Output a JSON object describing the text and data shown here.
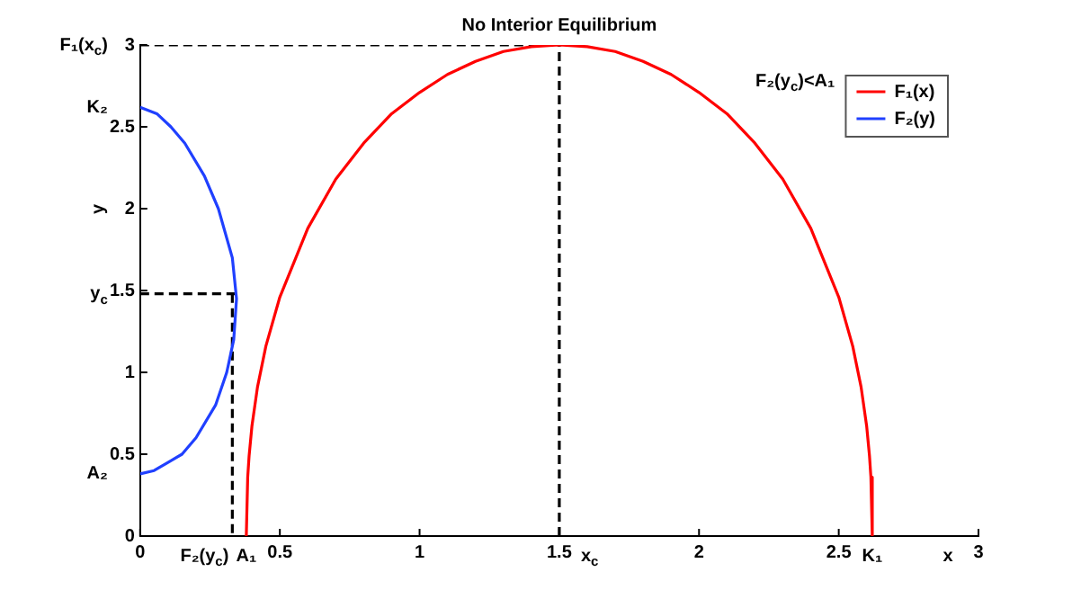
{
  "chart_data": {
    "type": "line",
    "title": "No Interior Equilibrium",
    "xlabel": "x",
    "ylabel": "y",
    "xlim": [
      0,
      3
    ],
    "ylim": [
      0,
      3
    ],
    "xticks": [
      0,
      0.5,
      1,
      1.5,
      2,
      2.5,
      3
    ],
    "yticks": [
      0,
      0.5,
      1,
      1.5,
      2,
      2.5,
      3
    ],
    "grid": false,
    "legend": "top right",
    "marker": "none",
    "line_style": "solid",
    "series": [
      {
        "name": "F₁(x)",
        "color": "#ff0000",
        "x": [
          0.38,
          0.385,
          0.39,
          0.4,
          0.42,
          0.45,
          0.5,
          0.6,
          0.7,
          0.8,
          0.9,
          1,
          1.1,
          1.2,
          1.3,
          1.4,
          1.5,
          1.6,
          1.7,
          1.8,
          1.9,
          2,
          2.1,
          2.2,
          2.3,
          2.4,
          2.5,
          2.55,
          2.58,
          2.6,
          2.61,
          2.615,
          2.62
        ],
        "values": [
          0,
          0.36,
          0.49,
          0.67,
          0.91,
          1.16,
          1.46,
          1.88,
          2.18,
          2.4,
          2.58,
          2.71,
          2.82,
          2.9,
          2.96,
          2.99,
          3,
          2.99,
          2.96,
          2.9,
          2.82,
          2.71,
          2.58,
          2.4,
          2.18,
          1.88,
          1.46,
          1.16,
          0.91,
          0.67,
          0.49,
          0.36,
          0
        ]
      },
      {
        "name": "F₂(y)",
        "color": "#2040ff",
        "x": [
          0,
          0.05,
          0.1,
          0.15,
          0.2,
          0.27,
          0.31,
          0.335,
          0.345,
          0.33,
          0.28,
          0.23,
          0.16,
          0.11,
          0.06,
          0
        ],
        "values": [
          0.38,
          0.4,
          0.45,
          0.5,
          0.6,
          0.8,
          1,
          1.2,
          1.45,
          1.7,
          2,
          2.2,
          2.4,
          2.5,
          2.58,
          2.62
        ]
      },
      {
        "color": "#000000",
        "line_style": "dashed",
        "x": [
          0,
          1.5
        ],
        "values": [
          3,
          3
        ]
      },
      {
        "color": "#000000",
        "line_style": "dashed",
        "x": [
          1.5,
          1.5
        ],
        "values": [
          0,
          3
        ]
      },
      {
        "color": "#000000",
        "line_style": "dashed",
        "x": [
          0,
          0.34
        ],
        "values": [
          1.48,
          1.48
        ]
      },
      {
        "color": "#000000",
        "line_style": "dashed",
        "x": [
          0.33,
          0.33
        ],
        "values": [
          1.48,
          0
        ]
      }
    ],
    "annotations": [
      {
        "text": "F₁(x$_{c}$)",
        "x": 0,
        "y": 3
      },
      {
        "text": "K₂",
        "x": 0,
        "y": 2.62
      },
      {
        "text": "y$_{c}$",
        "x": 0,
        "y": 1.48
      },
      {
        "text": "A₂",
        "x": 0,
        "y": 0.38
      },
      {
        "text": "F₂(y$_{c}$)",
        "x": 0.33,
        "y": 0
      },
      {
        "text": "A₁",
        "x": 0.38,
        "y": 0
      },
      {
        "text": "x$_{c}$",
        "x": 1.5,
        "y": 0
      },
      {
        "text": "K₁",
        "x": 2.62,
        "y": 0
      },
      "F₂(y$_{c}$)<A₁"
    ]
  }
}
